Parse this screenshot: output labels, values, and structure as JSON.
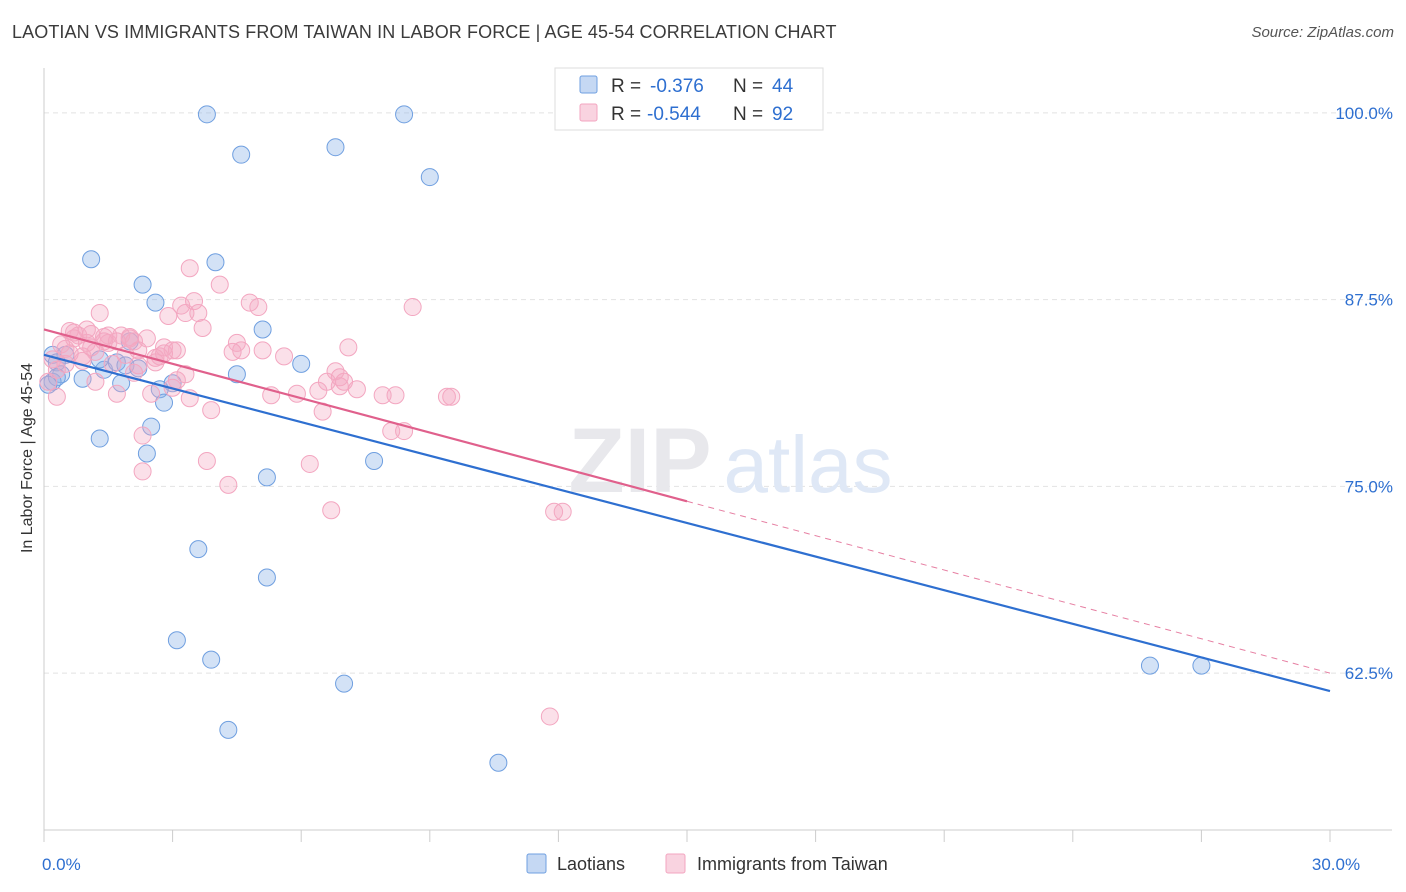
{
  "chart_data": {
    "type": "scatter",
    "title": "LAOTIAN VS IMMIGRANTS FROM TAIWAN IN LABOR FORCE | AGE 45-54 CORRELATION CHART",
    "source": "Source: ZipAtlas.com",
    "xlabel": "",
    "ylabel": "In Labor Force | Age 45-54",
    "xlim": [
      0,
      30
    ],
    "ylim": [
      52,
      103
    ],
    "x_tick_labels": [
      {
        "value": 0,
        "label": "0.0%"
      },
      {
        "value": 30,
        "label": "30.0%"
      }
    ],
    "y_tick_labels": [
      {
        "value": 100,
        "label": "100.0%"
      },
      {
        "value": 87.5,
        "label": "87.5%"
      },
      {
        "value": 75,
        "label": "75.0%"
      },
      {
        "value": 62.5,
        "label": "62.5%"
      }
    ],
    "x_minor_ticks": [
      0,
      3,
      6,
      9,
      12,
      15,
      18,
      21,
      24,
      27,
      30
    ],
    "watermark": {
      "bold": "ZIP",
      "light": "atlas"
    },
    "legend_position": "top-center",
    "series": [
      {
        "name": "Laotians",
        "color": "#6f9fe0",
        "line_color": "#2e6fd0",
        "R": "-0.376",
        "N": "44",
        "trend": {
          "x0": 0,
          "y0": 83.8,
          "x1": 30,
          "y1": 61.3
        },
        "points": [
          [
            3.8,
            99.9
          ],
          [
            8.4,
            99.9
          ],
          [
            4.6,
            97.2
          ],
          [
            6.8,
            97.7
          ],
          [
            9.0,
            95.7
          ],
          [
            1.1,
            90.2
          ],
          [
            4.0,
            90.0
          ],
          [
            2.3,
            88.5
          ],
          [
            2.6,
            87.3
          ],
          [
            5.1,
            85.5
          ],
          [
            0.2,
            83.8
          ],
          [
            0.5,
            83.8
          ],
          [
            0.3,
            83.3
          ],
          [
            0.4,
            82.5
          ],
          [
            0.2,
            82.0
          ],
          [
            0.3,
            82.3
          ],
          [
            0.9,
            82.2
          ],
          [
            1.4,
            82.8
          ],
          [
            1.7,
            83.3
          ],
          [
            1.9,
            83.1
          ],
          [
            2.2,
            82.9
          ],
          [
            1.8,
            81.9
          ],
          [
            2.0,
            84.7
          ],
          [
            3.0,
            81.9
          ],
          [
            2.7,
            81.5
          ],
          [
            2.8,
            80.6
          ],
          [
            4.5,
            82.5
          ],
          [
            6.0,
            83.2
          ],
          [
            1.3,
            83.5
          ],
          [
            2.5,
            79.0
          ],
          [
            1.3,
            78.2
          ],
          [
            2.4,
            77.2
          ],
          [
            7.7,
            76.7
          ],
          [
            5.2,
            75.6
          ],
          [
            3.6,
            70.8
          ],
          [
            5.2,
            68.9
          ],
          [
            3.1,
            64.7
          ],
          [
            3.9,
            63.4
          ],
          [
            7.0,
            61.8
          ],
          [
            4.3,
            58.7
          ],
          [
            10.6,
            56.5
          ],
          [
            25.8,
            63.0
          ],
          [
            27.0,
            63.0
          ],
          [
            0.1,
            81.8
          ]
        ]
      },
      {
        "name": "Immigrants from Taiwan",
        "color": "#f3a6c0",
        "line_color": "#e0608c",
        "R": "-0.544",
        "N": "92",
        "trend": {
          "x0": 0,
          "y0": 85.5,
          "x1": 15,
          "y1": 74.0
        },
        "trend_dashed": {
          "x0": 15,
          "y0": 74.0,
          "x1": 30,
          "y1": 62.5
        },
        "points": [
          [
            0.2,
            83.5
          ],
          [
            0.3,
            82.8
          ],
          [
            0.5,
            84.2
          ],
          [
            0.6,
            85.4
          ],
          [
            0.7,
            84.9
          ],
          [
            0.8,
            85.1
          ],
          [
            0.9,
            83.7
          ],
          [
            1.0,
            84.6
          ],
          [
            1.1,
            85.2
          ],
          [
            1.2,
            84.0
          ],
          [
            1.3,
            86.6
          ],
          [
            1.4,
            85.0
          ],
          [
            1.5,
            84.6
          ],
          [
            1.6,
            83.2
          ],
          [
            1.7,
            81.2
          ],
          [
            1.8,
            85.1
          ],
          [
            1.9,
            83.8
          ],
          [
            2.0,
            85.0
          ],
          [
            2.1,
            82.6
          ],
          [
            2.2,
            84.1
          ],
          [
            2.3,
            78.4
          ],
          [
            2.3,
            76.0
          ],
          [
            2.5,
            81.2
          ],
          [
            2.6,
            83.3
          ],
          [
            2.7,
            83.7
          ],
          [
            2.8,
            84.3
          ],
          [
            2.9,
            86.4
          ],
          [
            3.0,
            84.1
          ],
          [
            3.1,
            82.1
          ],
          [
            3.2,
            87.1
          ],
          [
            3.3,
            86.6
          ],
          [
            3.4,
            89.6
          ],
          [
            3.5,
            87.4
          ],
          [
            3.6,
            86.6
          ],
          [
            3.7,
            85.6
          ],
          [
            3.8,
            76.7
          ],
          [
            3.9,
            80.1
          ],
          [
            4.1,
            88.5
          ],
          [
            4.3,
            75.1
          ],
          [
            4.5,
            84.6
          ],
          [
            4.6,
            84.1
          ],
          [
            4.8,
            87.3
          ],
          [
            5.0,
            87.0
          ],
          [
            5.1,
            84.1
          ],
          [
            5.3,
            81.1
          ],
          [
            5.6,
            83.7
          ],
          [
            5.9,
            81.2
          ],
          [
            6.2,
            76.5
          ],
          [
            6.4,
            81.4
          ],
          [
            6.5,
            80.0
          ],
          [
            6.6,
            82.0
          ],
          [
            6.7,
            73.4
          ],
          [
            6.8,
            82.7
          ],
          [
            6.9,
            81.7
          ],
          [
            7.0,
            82.0
          ],
          [
            7.1,
            84.3
          ],
          [
            7.3,
            81.5
          ],
          [
            7.9,
            81.1
          ],
          [
            8.1,
            78.7
          ],
          [
            8.2,
            81.1
          ],
          [
            8.4,
            78.7
          ],
          [
            8.6,
            87.0
          ],
          [
            9.4,
            81.0
          ],
          [
            9.5,
            81.0
          ],
          [
            11.9,
            73.3
          ],
          [
            12.1,
            73.3
          ],
          [
            11.8,
            59.6
          ],
          [
            2.0,
            84.9
          ],
          [
            1.5,
            85.1
          ],
          [
            0.4,
            84.5
          ],
          [
            0.9,
            83.4
          ],
          [
            1.2,
            82.0
          ],
          [
            2.6,
            83.6
          ],
          [
            3.0,
            81.6
          ],
          [
            3.4,
            80.9
          ],
          [
            2.1,
            84.7
          ],
          [
            1.7,
            84.7
          ],
          [
            0.1,
            82.0
          ],
          [
            0.3,
            81.0
          ],
          [
            0.5,
            83.2
          ],
          [
            1.0,
            85.5
          ],
          [
            2.2,
            83.1
          ],
          [
            3.1,
            84.1
          ],
          [
            4.4,
            84.0
          ],
          [
            2.8,
            83.9
          ],
          [
            3.3,
            82.5
          ],
          [
            1.1,
            84.3
          ],
          [
            0.7,
            85.3
          ],
          [
            2.4,
            84.9
          ],
          [
            6.9,
            82.3
          ],
          [
            1.4,
            84.7
          ],
          [
            0.6,
            83.9
          ]
        ]
      }
    ]
  }
}
